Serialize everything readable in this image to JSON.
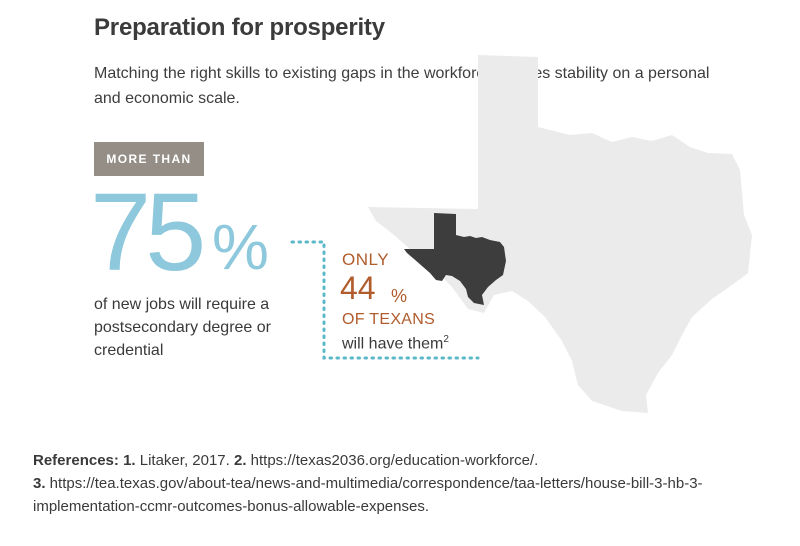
{
  "header": {
    "title": "Preparation for prosperity",
    "subtitle": "Matching the right skills to existing gaps in the workforce creates stability on a personal and economic scale."
  },
  "stat_main": {
    "badge": "MORE THAN",
    "number": "75",
    "unit": "%",
    "description": "of new jobs will require a postsecondary degree or credential",
    "color": "#8ec8dc"
  },
  "stat_secondary": {
    "prefix": "ONLY",
    "number": "44",
    "unit": "%",
    "label": "OF TEXANS",
    "suffix": "will have them",
    "footnote": "2",
    "color": "#b15c2c"
  },
  "references": {
    "lead": "References:",
    "n1": "1.",
    "r1": " Litaker, 2017. ",
    "n2": "2.",
    "r2": " https://texas2036.org/education-workforce/.",
    "n3": "3.",
    "r3": " https://tea.texas.gov/about-tea/news-and-multimedia/correspondence/taa-letters/house-bill-3-hb-3-implementation-ccmr-outcomes-bonus-allowable-expenses."
  },
  "colors": {
    "map_background": "#ebebeb",
    "map_highlight": "#3d3d3d",
    "badge": "#948e86"
  }
}
